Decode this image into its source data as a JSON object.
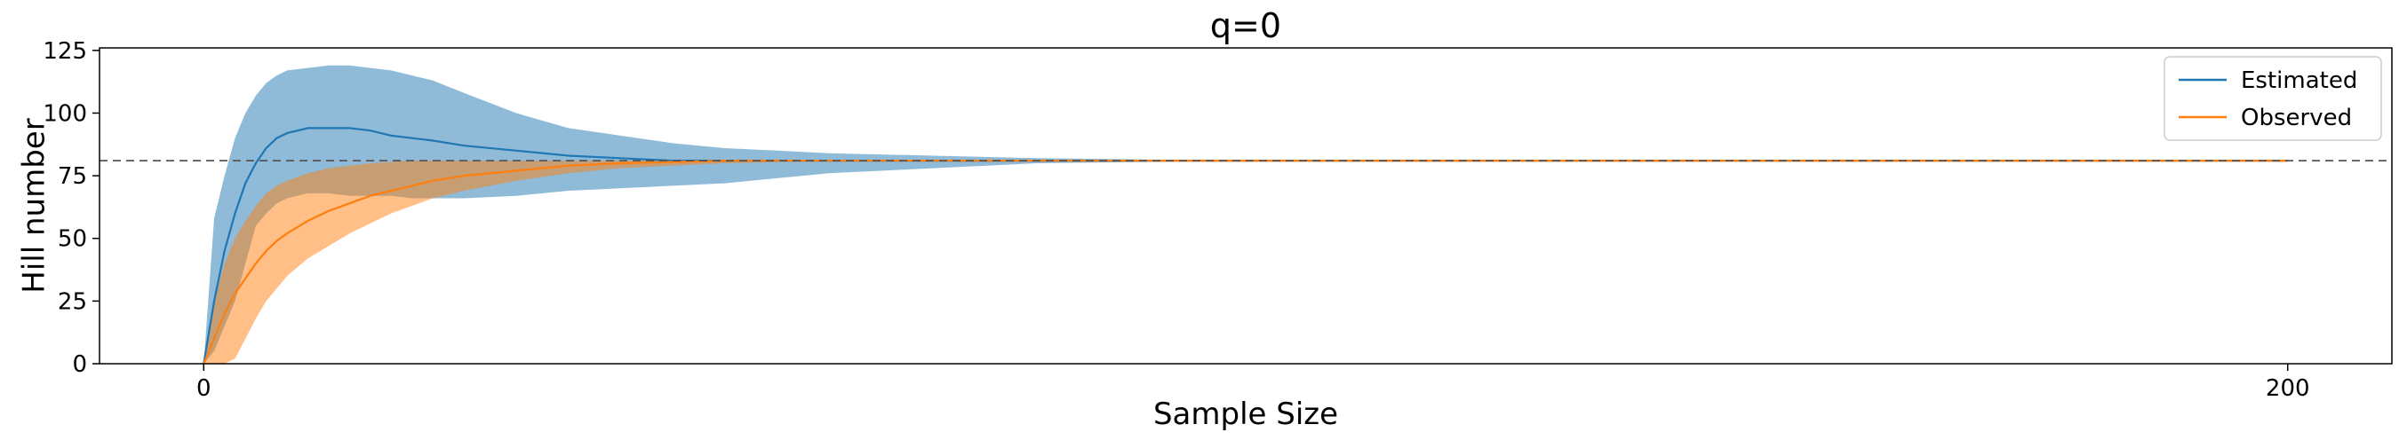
{
  "chart_data": {
    "type": "line",
    "title": "q=0",
    "xlabel": "Sample Size",
    "ylabel": "Hill number",
    "xlim": [
      -10,
      210
    ],
    "ylim": [
      0,
      126
    ],
    "x_ticks": [
      0,
      200
    ],
    "y_ticks": [
      0,
      25,
      50,
      75,
      100,
      125
    ],
    "grid": false,
    "legend_position": "top-right",
    "reference_line": {
      "y": 81,
      "style": "dashed",
      "color": "#555555"
    },
    "series": [
      {
        "name": "Estimated",
        "color": "#1f77b4",
        "band_color": "#1f77b4",
        "band_opacity": 0.5,
        "x": [
          0,
          1,
          2,
          3,
          4,
          5,
          6,
          7,
          8,
          10,
          12,
          14,
          16,
          18,
          20,
          22,
          25,
          30,
          35,
          40,
          45,
          50,
          55,
          60,
          70,
          80,
          90,
          100,
          120,
          140,
          160,
          180,
          200
        ],
        "y": [
          0,
          25,
          45,
          60,
          72,
          80,
          86,
          90,
          92,
          94,
          94,
          94,
          93,
          91,
          90,
          89,
          87,
          85,
          83,
          82,
          81,
          81,
          81,
          81,
          81,
          81,
          81,
          81,
          81,
          81,
          81,
          81,
          81
        ],
        "upper": [
          0,
          58,
          75,
          90,
          100,
          107,
          112,
          115,
          117,
          118,
          119,
          119,
          118,
          117,
          115,
          113,
          108,
          100,
          94,
          91,
          88,
          86,
          85,
          84,
          83,
          82,
          81.5,
          81,
          81,
          81,
          81,
          81,
          81
        ],
        "lower": [
          0,
          5,
          15,
          25,
          40,
          55,
          60,
          64,
          66,
          68,
          68,
          67,
          67,
          67,
          66,
          66,
          66,
          67,
          69,
          70,
          71,
          72,
          74,
          76,
          78,
          80,
          80.5,
          81,
          81,
          81,
          81,
          81,
          81
        ]
      },
      {
        "name": "Observed",
        "color": "#ff7f0e",
        "band_color": "#ff7f0e",
        "band_opacity": 0.5,
        "x": [
          0,
          1,
          2,
          3,
          4,
          5,
          6,
          7,
          8,
          10,
          12,
          14,
          16,
          18,
          20,
          22,
          25,
          30,
          35,
          40,
          45,
          50,
          55,
          60,
          70,
          80,
          90,
          100,
          120,
          140,
          160,
          180,
          200
        ],
        "y": [
          0,
          10,
          20,
          28,
          34,
          40,
          45,
          49,
          52,
          57,
          61,
          64,
          67,
          69,
          71,
          73,
          75,
          77,
          79,
          80,
          80.5,
          81,
          81,
          81,
          81,
          81,
          81,
          81,
          81,
          81,
          81,
          81,
          81
        ],
        "upper": [
          0,
          25,
          40,
          50,
          57,
          63,
          68,
          71,
          73,
          76,
          78,
          79,
          80,
          80.5,
          81,
          81,
          81,
          81,
          81,
          81,
          81,
          81,
          81,
          81,
          81,
          81,
          81,
          81,
          81,
          81,
          81,
          81,
          81
        ],
        "lower": [
          0,
          0,
          0,
          2,
          10,
          18,
          25,
          30,
          35,
          42,
          47,
          52,
          56,
          60,
          63,
          66,
          69,
          73,
          76,
          78,
          79,
          80,
          80.5,
          81,
          81,
          81,
          81,
          81,
          81,
          81,
          81,
          81,
          81
        ]
      }
    ]
  }
}
